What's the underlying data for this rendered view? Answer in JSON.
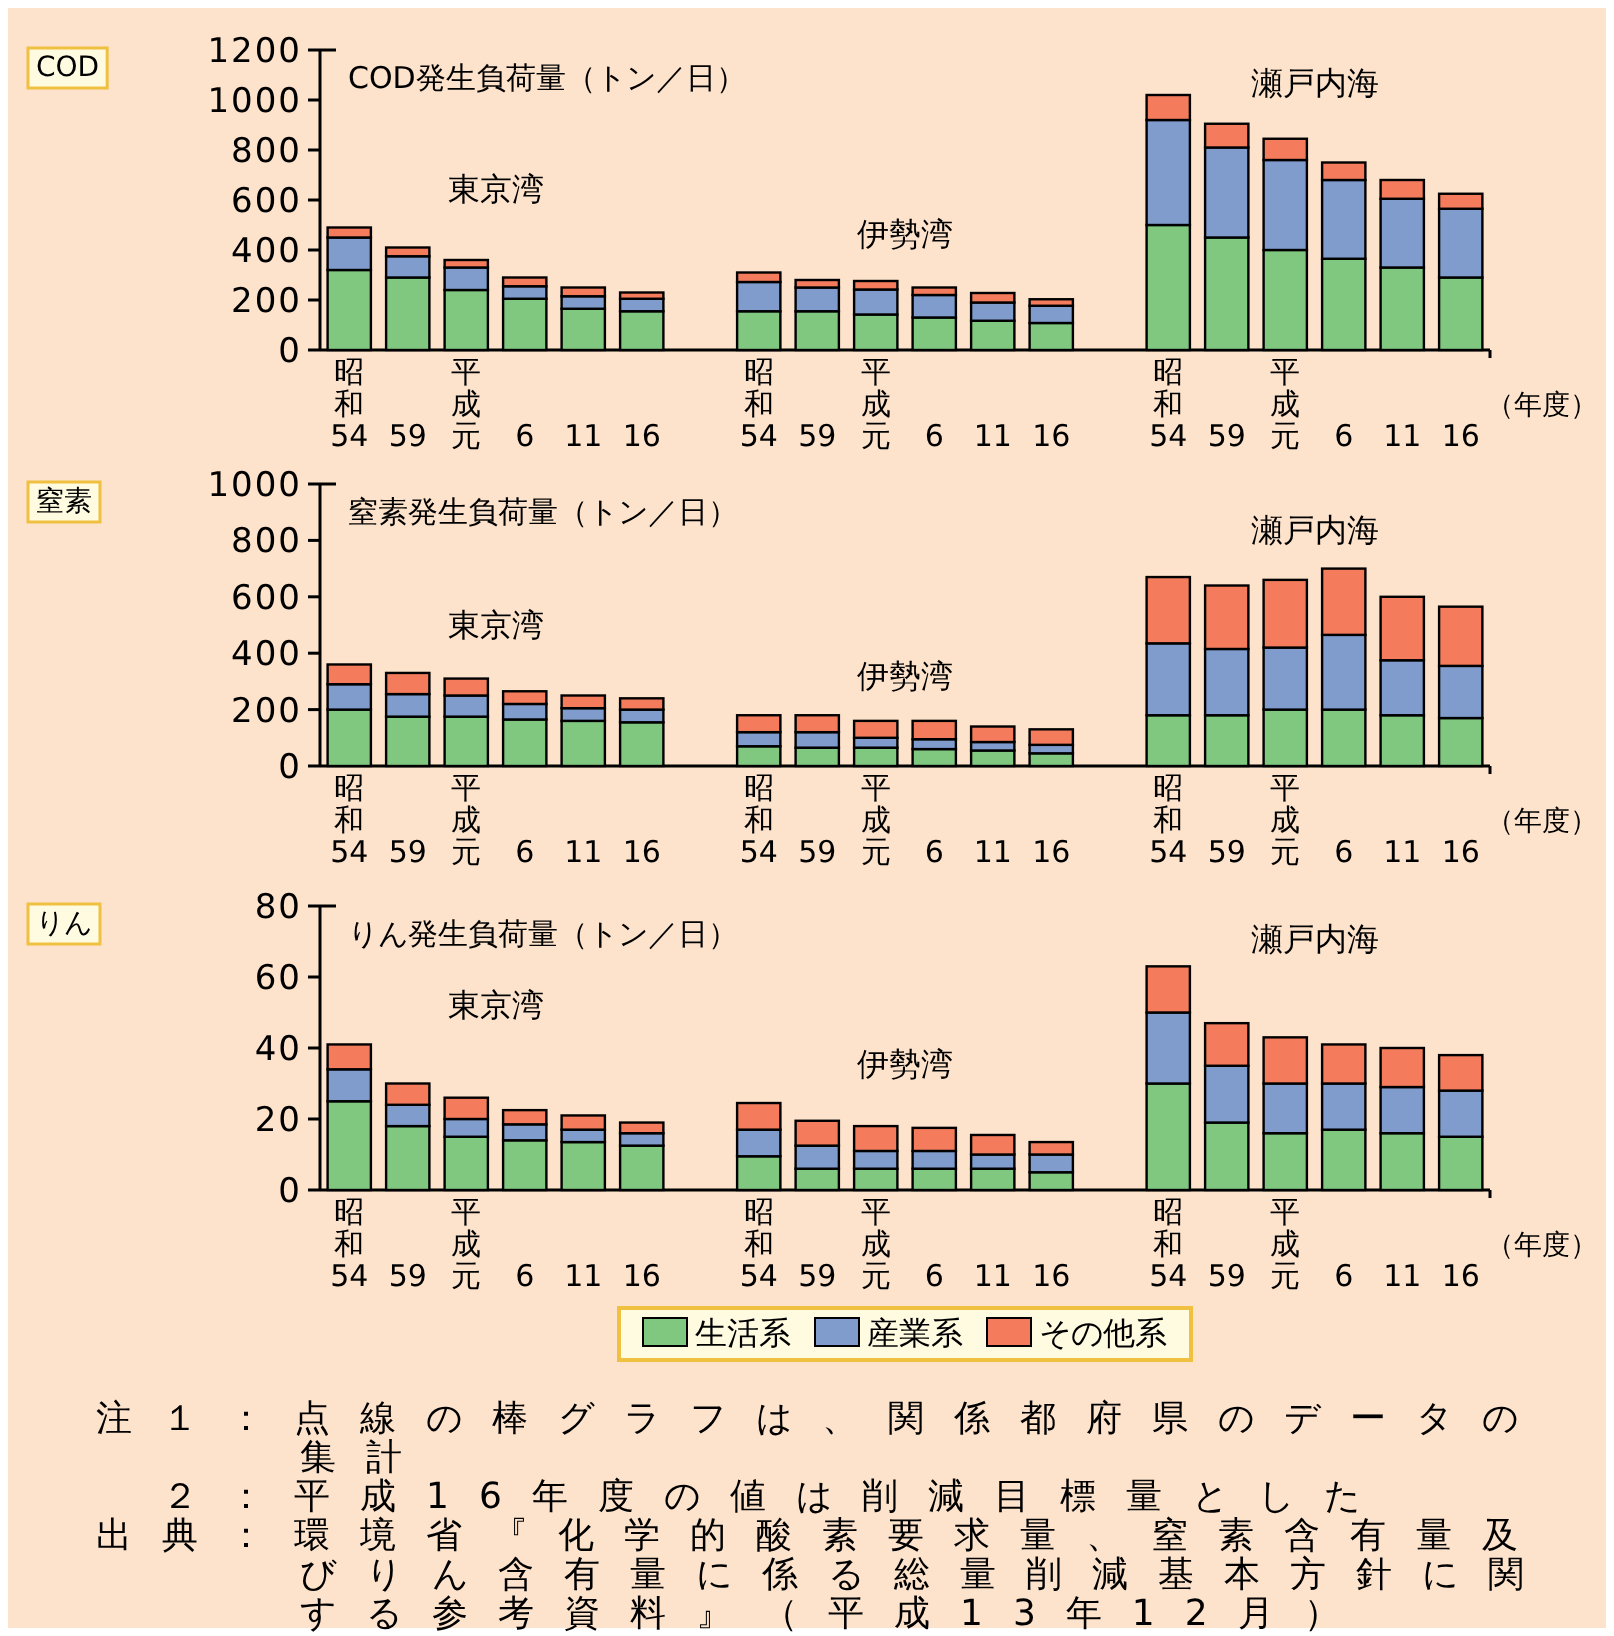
{
  "chart_data": [
    {
      "type": "bar",
      "stacked": true,
      "title": "COD",
      "ylabel": "COD発生負荷量（トン／日）",
      "xlabel": "（年度）",
      "ylim": [
        0,
        1200
      ],
      "yticks": [
        0,
        200,
        400,
        600,
        800,
        1000,
        1200
      ],
      "legend": false,
      "categories": [
        "昭和54",
        "59",
        "平成元",
        "6",
        "11",
        "16",
        null,
        "昭和54",
        "59",
        "平成元",
        "6",
        "11",
        "16",
        null,
        "昭和54",
        "59",
        "平成元",
        "6",
        "11",
        "16"
      ],
      "annotations": [
        "東京湾",
        "伊勢湾",
        "瀬戸内海"
      ],
      "series": [
        {
          "color": "#80c880",
          "values": [
            320,
            290,
            240,
            205,
            165,
            155,
            null,
            155,
            155,
            142,
            130,
            117,
            108,
            null,
            500,
            450,
            400,
            365,
            330,
            290
          ]
        },
        {
          "color": "#7f9ccc",
          "values": [
            130,
            85,
            90,
            50,
            50,
            50,
            null,
            117,
            95,
            100,
            90,
            73,
            69,
            null,
            420,
            360,
            360,
            315,
            275,
            275
          ]
        },
        {
          "color": "#f47c5c",
          "values": [
            40,
            35,
            30,
            35,
            35,
            25,
            null,
            38,
            30,
            34,
            30,
            38,
            26,
            null,
            100,
            95,
            85,
            70,
            75,
            60
          ]
        }
      ]
    },
    {
      "type": "bar",
      "stacked": true,
      "title": "窒素",
      "ylabel": "窒素発生負荷量（トン／日）",
      "xlabel": "（年度）",
      "ylim": [
        0,
        1000
      ],
      "yticks": [
        0,
        200,
        400,
        600,
        800,
        1000
      ],
      "legend": false,
      "categories": [
        "昭和54",
        "59",
        "平成元",
        "6",
        "11",
        "16",
        null,
        "昭和54",
        "59",
        "平成元",
        "6",
        "11",
        "16",
        null,
        "昭和54",
        "59",
        "平成元",
        "6",
        "11",
        "16"
      ],
      "annotations": [
        "東京湾",
        "伊勢湾",
        "瀬戸内海"
      ],
      "series": [
        {
          "color": "#80c880",
          "values": [
            200,
            175,
            175,
            165,
            160,
            155,
            null,
            70,
            65,
            65,
            60,
            55,
            45,
            null,
            180,
            180,
            200,
            200,
            180,
            170
          ]
        },
        {
          "color": "#7f9ccc",
          "values": [
            90,
            80,
            75,
            55,
            45,
            45,
            null,
            50,
            55,
            35,
            35,
            30,
            30,
            null,
            255,
            235,
            220,
            265,
            195,
            185
          ]
        },
        {
          "color": "#f47c5c",
          "values": [
            70,
            75,
            60,
            45,
            45,
            40,
            null,
            60,
            60,
            60,
            65,
            55,
            55,
            null,
            235,
            225,
            240,
            235,
            225,
            210
          ]
        }
      ]
    },
    {
      "type": "bar",
      "stacked": true,
      "title": "りん",
      "ylabel": "りん発生負荷量（トン／日）",
      "xlabel": "（年度）",
      "ylim": [
        0,
        80
      ],
      "yticks": [
        0,
        20,
        40,
        60,
        80
      ],
      "legend": "bottom",
      "categories": [
        "昭和54",
        "59",
        "平成元",
        "6",
        "11",
        "16",
        null,
        "昭和54",
        "59",
        "平成元",
        "6",
        "11",
        "16",
        null,
        "昭和54",
        "59",
        "平成元",
        "6",
        "11",
        "16"
      ],
      "annotations": [
        "東京湾",
        "伊勢湾",
        "瀬戸内海",
        "注１：点線の棒グラフは、関係都府県のデータの集計",
        "　２：平成16年度の値は削減目標量とした",
        "出典：環境省『化学的酸素要求量、窒素含有量及びりん含有量に係る総量削減基本方針に関する参考資料』（平成13年12月）"
      ],
      "series": [
        {
          "name": "生活系",
          "color": "#80c880",
          "values": [
            25,
            18,
            15,
            14,
            13.5,
            12.5,
            null,
            9.5,
            6,
            6,
            6,
            6,
            5,
            null,
            30,
            19,
            16,
            17,
            16,
            15
          ]
        },
        {
          "name": "産業系",
          "color": "#7f9ccc",
          "values": [
            9,
            6,
            5,
            4.5,
            3.5,
            3.5,
            null,
            7.5,
            6.5,
            5,
            5,
            4,
            5,
            null,
            20,
            16,
            14,
            13,
            13,
            13
          ]
        },
        {
          "name": "その他系",
          "color": "#f47c5c",
          "values": [
            7,
            6,
            6,
            4,
            4,
            3,
            null,
            7.5,
            7,
            7,
            6.5,
            5.5,
            3.5,
            null,
            13,
            12,
            13,
            11,
            11,
            10
          ]
        }
      ]
    }
  ]
}
